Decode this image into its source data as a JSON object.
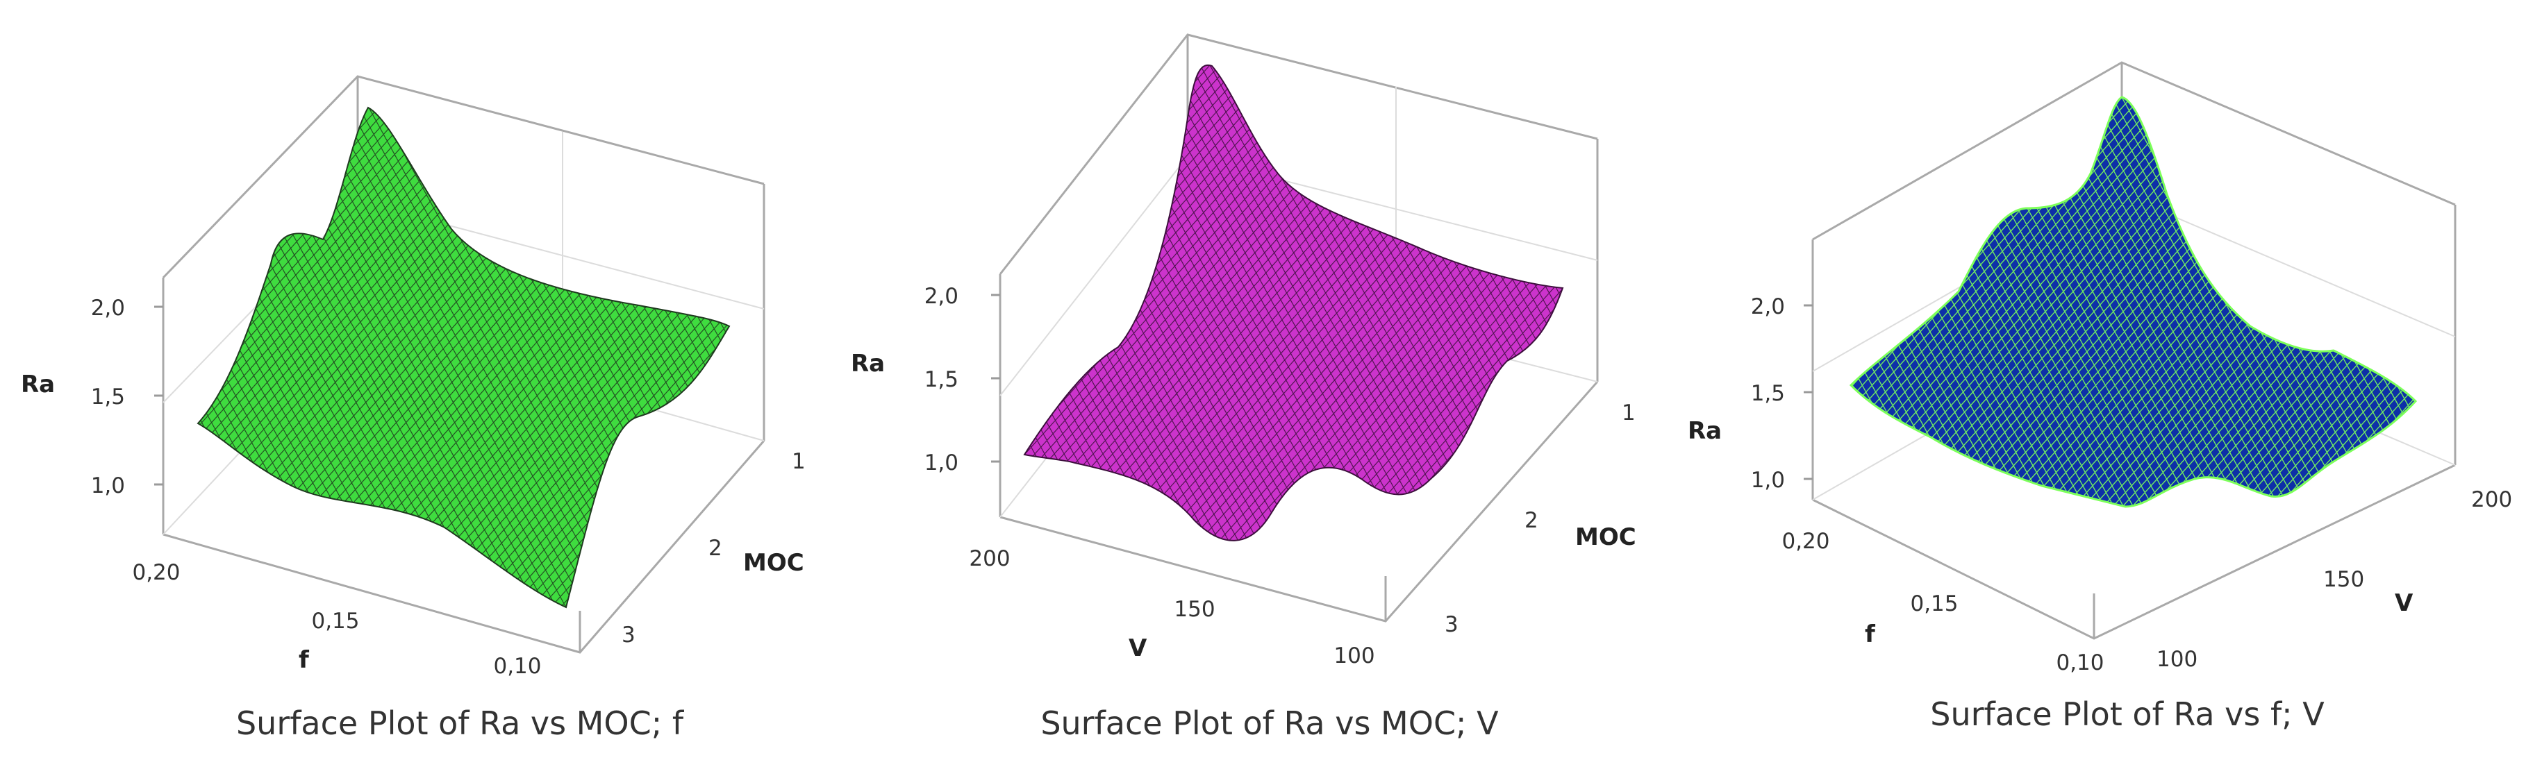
{
  "chart_data": [
    {
      "type": "surface",
      "title": "Surface Plot of Ra vs MOC; f",
      "zlabel": "Ra",
      "xlabel": "f",
      "ylabel": "MOC",
      "zticks": [
        "1,0",
        "1,5",
        "2,0"
      ],
      "xticks": [
        "0,20",
        "0,15",
        "0,10"
      ],
      "yticks": [
        "1",
        "2",
        "3"
      ],
      "zlim": [
        0.8,
        2.3
      ],
      "surface_color": "#3fdc3f",
      "mesh_color": "#1f3a1f",
      "grid_samples": [
        [
          1.35,
          1.95,
          2.05,
          1.55,
          1.6
        ],
        [
          1.45,
          1.5,
          1.45,
          1.4,
          1.45
        ],
        [
          1.35,
          1.3,
          1.4,
          1.3,
          1.35
        ],
        [
          1.15,
          1.25,
          1.2,
          0.95,
          1.5
        ]
      ]
    },
    {
      "type": "surface",
      "title": "Surface Plot of Ra vs MOC; V",
      "zlabel": "Ra",
      "xlabel": "V",
      "ylabel": "MOC",
      "zticks": [
        "1,0",
        "1,5",
        "2,0"
      ],
      "xticks": [
        "200",
        "150",
        "100"
      ],
      "yticks": [
        "1",
        "2",
        "3"
      ],
      "zlim": [
        0.8,
        2.3
      ],
      "surface_color": "#cc33cc",
      "mesh_color": "#3d0f3d",
      "grid_samples": [
        [
          1.45,
          2.55,
          1.8,
          1.45,
          1.6
        ],
        [
          1.2,
          1.5,
          1.75,
          1.4,
          1.35
        ],
        [
          1.05,
          1.1,
          1.4,
          1.15,
          1.3
        ],
        [
          1.05,
          0.85,
          1.1,
          1.0,
          1.15
        ]
      ]
    },
    {
      "type": "surface",
      "title": "Surface Plot of Ra vs f; V",
      "zlabel": "Ra",
      "xlabel": "f",
      "ylabel": "V",
      "zticks": [
        "1,0",
        "1,5",
        "2,0"
      ],
      "xticks": [
        "0,20",
        "0,15",
        "0,10"
      ],
      "yticks": [
        "100",
        "150",
        "200"
      ],
      "zlim": [
        0.8,
        2.3
      ],
      "surface_color": "#0d2fa8",
      "mesh_color": "#7dff5a",
      "grid_samples": [
        [
          1.45,
          1.7,
          1.8,
          2.5,
          1.55
        ],
        [
          1.4,
          1.45,
          1.55,
          1.5,
          1.45
        ],
        [
          1.3,
          1.35,
          1.3,
          1.25,
          1.35
        ],
        [
          1.2,
          1.1,
          1.0,
          1.05,
          1.25
        ]
      ]
    }
  ]
}
